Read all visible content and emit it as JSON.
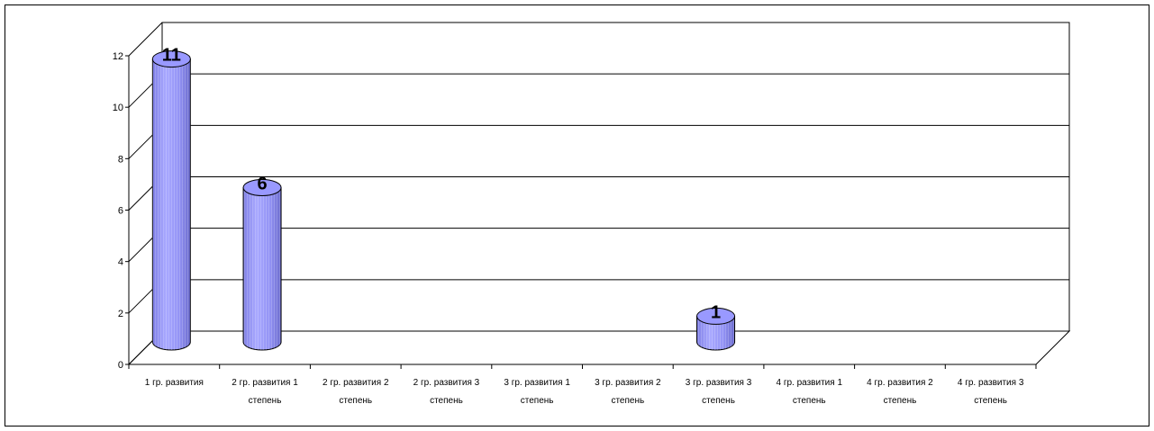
{
  "chart_data": {
    "type": "bar",
    "style": "3d-cylinder",
    "title": "",
    "xlabel": "",
    "ylabel": "",
    "ylim": [
      0,
      12
    ],
    "yticks": [
      0,
      2,
      4,
      6,
      8,
      10,
      12
    ],
    "grid": true,
    "legend": "none",
    "bar_color": "#9999ff",
    "categories": [
      [
        "1 гр. развития"
      ],
      [
        "2 гр. развития 1",
        "степень"
      ],
      [
        "2 гр. развития 2",
        "степень"
      ],
      [
        "2 гр. развития 3",
        "степень"
      ],
      [
        "3 гр. развития 1",
        "степень"
      ],
      [
        "3 гр. развития 2",
        "степень"
      ],
      [
        "3 гр. развития 3",
        "степень"
      ],
      [
        "4 гр. развития 1",
        "степень"
      ],
      [
        "4 гр. развития 2",
        "степень"
      ],
      [
        "4 гр. развития 3",
        "степень"
      ]
    ],
    "values": [
      11,
      6,
      null,
      null,
      null,
      null,
      1,
      null,
      null,
      null
    ],
    "data_labels": [
      "11",
      "6",
      "",
      "",
      "",
      "",
      "1",
      "",
      "",
      ""
    ]
  }
}
